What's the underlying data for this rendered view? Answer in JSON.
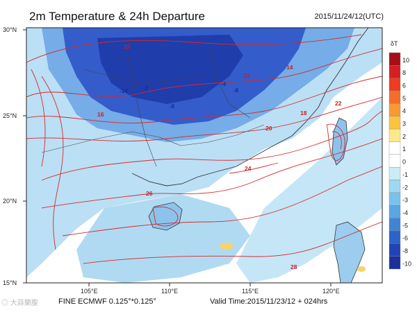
{
  "header": {
    "title": "2m Temperature & 24h Departure",
    "valid_stamp": "2015/11/24/12(UTC)"
  },
  "footer": {
    "model": "FINE ECMWF 0.125°*0.125°",
    "valid_time": "Valid Time:2015/11/23/12 + 024hrs",
    "watermark": "大蒜蘭腹"
  },
  "map": {
    "lon_range": [
      101.5,
      123.5
    ],
    "lat_range": [
      15,
      30
    ],
    "lon_ticks": [
      "105°E",
      "110°E",
      "115°E",
      "120°E"
    ],
    "lat_ticks": [
      "30°N",
      "25°N",
      "20°N",
      "15°N"
    ],
    "temperature_contour_labels": [
      "10",
      "12",
      "14",
      "16",
      "18",
      "20",
      "22",
      "24",
      "26",
      "28"
    ],
    "departure_labels": [
      "-2",
      "-4",
      "-6",
      "-8",
      "-10"
    ]
  },
  "colorbar": {
    "title": "δT",
    "levels": [
      "10",
      "8",
      "6",
      "5",
      "4",
      "3",
      "2",
      "1",
      "0",
      "-1",
      "-2",
      "-3",
      "-4",
      "-5",
      "-6",
      "-8",
      "-10"
    ],
    "colors": [
      "#a50f15",
      "#d41f21",
      "#ee3b22",
      "#f46d2b",
      "#f79a34",
      "#fcc43e",
      "#fde98a",
      "#ffffff",
      "#ffffff",
      "#c9ecf8",
      "#9fd8f2",
      "#79c2ec",
      "#5aa6e2",
      "#3f85d6",
      "#2b63c8",
      "#1e44b6",
      "#1b2f9e"
    ]
  },
  "colors": {
    "contour": "#d42a2a",
    "land_base": "#f6f7fb",
    "sea_base": "#ffffff",
    "cold_dark": "#2b54c8",
    "cold_mid": "#5a8ce0",
    "cold_light": "#a8d5f2",
    "warm": "#f7d36a"
  }
}
